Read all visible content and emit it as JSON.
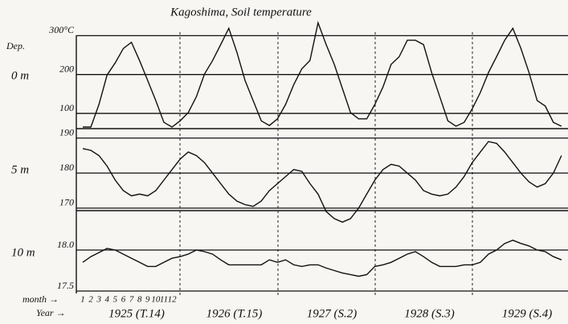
{
  "title": "Kagoshima,  Soil temperature",
  "depth_header": "Dep.",
  "month_label": "month →",
  "year_label": "Year →",
  "years": [
    "1925 (T.14)",
    "1926 (T.15)",
    "1927 (S.2)",
    "1928 (S.3)",
    "1929 (S.4)"
  ],
  "chart_data": [
    {
      "type": "line",
      "label": "0 m",
      "color": "#111",
      "categories": [
        "1",
        "2",
        "3",
        "4",
        "5",
        "6",
        "7",
        "8",
        "9",
        "10",
        "11",
        "12",
        null,
        null,
        null,
        null,
        null,
        null,
        null,
        null,
        null,
        null,
        null,
        null,
        null,
        null,
        null,
        null,
        null,
        null,
        null,
        null,
        null,
        null,
        null,
        null,
        null,
        null,
        null,
        null,
        null,
        null,
        null,
        null,
        null,
        null,
        null,
        null,
        null,
        null,
        null,
        null,
        null,
        null,
        null,
        null,
        null,
        null,
        null,
        null
      ],
      "values": [
        65,
        65,
        123,
        199,
        230,
        267,
        283,
        236,
        185,
        133,
        77,
        65,
        81,
        102,
        143,
        201,
        236,
        277,
        319,
        257,
        185,
        133,
        81,
        69,
        86,
        123,
        174,
        215,
        236,
        333,
        277,
        226,
        164,
        102,
        86,
        86,
        123,
        168,
        226,
        246,
        288,
        288,
        277,
        205,
        143,
        81,
        67,
        77,
        112,
        154,
        205,
        246,
        288,
        319,
        267,
        205,
        133,
        119,
        77,
        67
      ],
      "ylim": [
        65,
        340
      ],
      "yticks": [
        {
          "value": 300,
          "label": "300°C"
        },
        200,
        100
      ]
    },
    {
      "type": "line",
      "label": "5 m",
      "color": "#111",
      "values": [
        187,
        186.5,
        185,
        182,
        178,
        175,
        173.5,
        174,
        173.5,
        175,
        178,
        181,
        184,
        186,
        185,
        183,
        180,
        177,
        174,
        172,
        171,
        170.5,
        172,
        175,
        177,
        179,
        181,
        180.5,
        177,
        174,
        169,
        167,
        166,
        167,
        170,
        174,
        178,
        181,
        182.5,
        182,
        180,
        178,
        175,
        174,
        173.5,
        174,
        176,
        179,
        183,
        186,
        189,
        188.5,
        186,
        183,
        180,
        177.5,
        176,
        177,
        180,
        185
      ],
      "ylim": [
        164,
        192
      ],
      "yticks": [
        190,
        180,
        170
      ]
    },
    {
      "type": "line",
      "label": "10 m",
      "color": "#111",
      "values": [
        17.85,
        17.92,
        17.97,
        18.02,
        18.0,
        17.95,
        17.9,
        17.85,
        17.8,
        17.8,
        17.85,
        17.9,
        17.92,
        17.95,
        18.0,
        17.98,
        17.95,
        17.88,
        17.82,
        17.82,
        17.82,
        17.82,
        17.82,
        17.88,
        17.85,
        17.88,
        17.82,
        17.8,
        17.82,
        17.82,
        17.78,
        17.75,
        17.72,
        17.7,
        17.68,
        17.7,
        17.8,
        17.82,
        17.85,
        17.9,
        17.95,
        17.98,
        17.92,
        17.85,
        17.8,
        17.8,
        17.8,
        17.82,
        17.82,
        17.85,
        17.95,
        18.0,
        18.08,
        18.12,
        18.08,
        18.05,
        18.0,
        17.98,
        17.92,
        17.88
      ],
      "ylim": [
        17.5,
        18.5
      ],
      "yticks": [
        {
          "value": 18,
          "label": "18.0"
        },
        17.5
      ]
    }
  ]
}
